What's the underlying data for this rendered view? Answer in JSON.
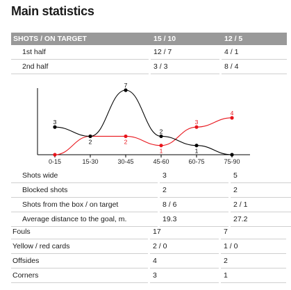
{
  "title": "Main statistics",
  "header": {
    "label": "SHOTS / ON TARGET",
    "home": "15 / 10",
    "away": "12 / 5"
  },
  "halves": [
    {
      "label": "1st half",
      "home": "12 / 7",
      "away": "4 / 1"
    },
    {
      "label": "2nd half",
      "home": "3 / 3",
      "away": "8 / 4"
    }
  ],
  "shot_rows": [
    {
      "label": "Shots wide",
      "home": "3",
      "away": "5"
    },
    {
      "label": "Blocked shots",
      "home": "2",
      "away": "2"
    },
    {
      "label": "Shots from the box / on target",
      "home": "8 / 6",
      "away": "2 / 1"
    },
    {
      "label": "Average distance to the goal, m.",
      "home": "19.3",
      "away": "27.2"
    }
  ],
  "other_rows": [
    {
      "label": "Fouls",
      "home": "17",
      "away": "7"
    },
    {
      "label": "Yellow / red cards",
      "home": "2 / 0",
      "away": "1 / 0"
    },
    {
      "label": "Offsides",
      "home": "4",
      "away": "2"
    },
    {
      "label": "Corners",
      "home": "3",
      "away": "1"
    }
  ],
  "colors": {
    "header_bg": "#999999",
    "home_series": "#000000",
    "away_series": "#e8141b",
    "rule": "#cfcfcf"
  },
  "chart_data": {
    "type": "line",
    "categories": [
      "0-15",
      "15-30",
      "30-45",
      "45-60",
      "60-75",
      "75-90"
    ],
    "series": [
      {
        "values": [
          3,
          2,
          7,
          2,
          1,
          0
        ]
      },
      {
        "values": [
          0,
          2,
          2,
          1,
          3,
          4
        ]
      }
    ],
    "ylim": [
      0,
      7
    ],
    "grid": false,
    "smooth": true
  }
}
